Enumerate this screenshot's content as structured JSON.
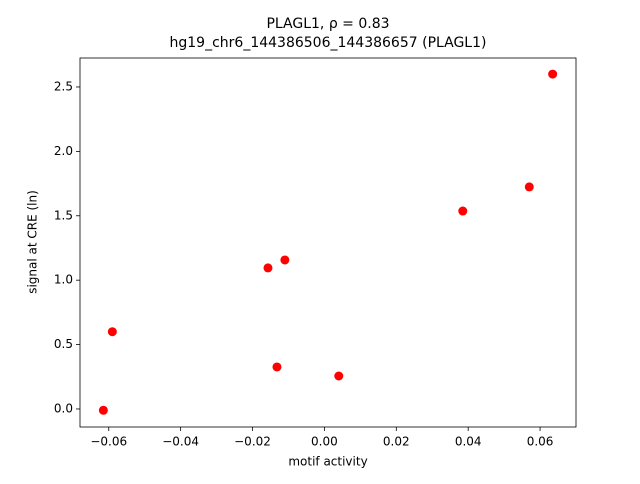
{
  "chart_data": {
    "type": "scatter",
    "title": "PLAGL1, ρ = 0.83",
    "subtitle": "hg19_chr6_144386506_144386657 (PLAGL1)",
    "x_label": "motif activity",
    "y_label": "signal at CRE (ln)",
    "color": "#ff0000",
    "series": [
      {
        "x": [
          -0.0615,
          -0.059,
          -0.0157,
          -0.011,
          -0.0132,
          0.004,
          0.0385,
          0.057,
          0.0635
        ],
        "values": [
          -0.01,
          0.6,
          1.095,
          1.157,
          0.326,
          0.256,
          1.537,
          1.724,
          2.6
        ]
      }
    ],
    "xlim": [
      -0.068,
      0.07
    ],
    "ylim": [
      -0.14,
      2.725
    ],
    "xticks": [
      {
        "value": -0.06,
        "label": "−0.06"
      },
      {
        "value": -0.04,
        "label": "−0.04"
      },
      {
        "value": -0.02,
        "label": "−0.02"
      },
      {
        "value": 0,
        "label": "0.00"
      },
      {
        "value": 0.02,
        "label": "0.02"
      },
      {
        "value": 0.04,
        "label": "0.04"
      },
      {
        "value": 0.06,
        "label": "0.06"
      }
    ],
    "yticks": [
      {
        "value": 0,
        "label": "0.0"
      },
      0.5,
      {
        "value": 1,
        "label": "1.0"
      },
      1.5,
      {
        "value": 2,
        "label": "2.0"
      },
      2.5
    ]
  }
}
